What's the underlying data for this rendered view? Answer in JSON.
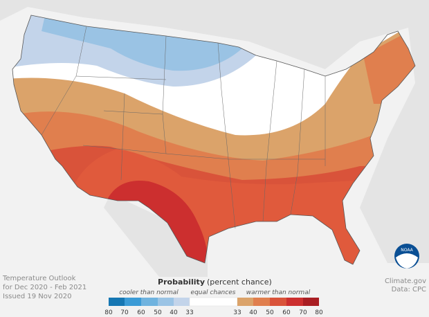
{
  "title": {
    "lines": [
      "Temperature Outlook",
      "for Dec 2020 - Feb 2021",
      "Issued 19 Nov 2020"
    ]
  },
  "legend": {
    "title": "Probability",
    "subtitle": "(percent chance)",
    "cool_label": "cooler than normal",
    "neutral_label": "equal chances",
    "warm_label": "warmer than normal",
    "cool_ticks": [
      "80",
      "70",
      "60",
      "50",
      "40",
      "33"
    ],
    "warm_ticks": [
      "33",
      "40",
      "50",
      "60",
      "70",
      "80"
    ]
  },
  "credit": {
    "source": "Climate.gov",
    "data": "Data: CPC"
  },
  "logo": "NOAA"
}
